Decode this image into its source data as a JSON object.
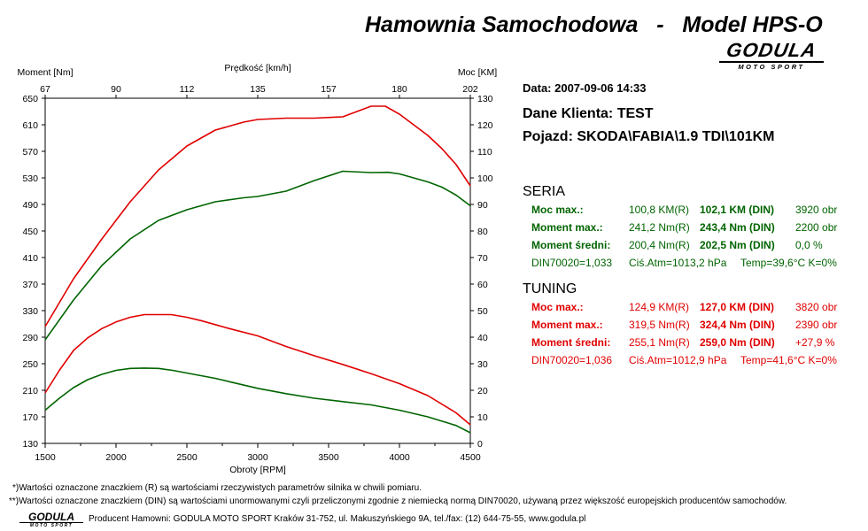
{
  "header": {
    "title": "Hamownia Samochodowa   -   Model HPS-O",
    "logo_top": "GODULA",
    "logo_bottom": "MOTO SPORT"
  },
  "info": {
    "date": "Data: 2007-09-06  14:33",
    "client": "Dane Klienta: TEST",
    "vehicle": "Pojazd: SKODA\\FABIA\\1.9 TDI\\101KM"
  },
  "colors": {
    "seria": "#006400",
    "tuning": "#e00000"
  },
  "seria": {
    "title": "SERIA",
    "rows": [
      {
        "label": "Moc max.:",
        "r": "100,8 KM(R)",
        "din": "102,1 KM (DIN)",
        "extra": "3920 obr"
      },
      {
        "label": "Moment max.:",
        "r": "241,2 Nm(R)",
        "din": "243,4 Nm (DIN)",
        "extra": "2200 obr"
      },
      {
        "label": "Moment średni:",
        "r": "200,4 Nm(R)",
        "din": "202,5 Nm (DIN)",
        "extra": "0,0 %"
      }
    ],
    "din_line": {
      "a": "DIN70020=1,033",
      "b": "Ciś.Atm=1013,2 hPa",
      "c": "Temp=39,6°C  K=0%"
    }
  },
  "tuning": {
    "title": "TUNING",
    "rows": [
      {
        "label": "Moc max.:",
        "r": "124,9 KM(R)",
        "din": "127,0 KM (DIN)",
        "extra": "3820 obr"
      },
      {
        "label": "Moment max.:",
        "r": "319,5 Nm(R)",
        "din": "324,4 Nm (DIN)",
        "extra": "2390 obr"
      },
      {
        "label": "Moment średni:",
        "r": "255,1 Nm(R)",
        "din": "259,0 Nm (DIN)",
        "extra": "+27,9 %"
      }
    ],
    "din_line": {
      "a": "DIN70020=1,036",
      "b": "Ciś.Atm=1012,9 hPa",
      "c": "Temp=41,6°C  K=0%"
    }
  },
  "footnotes": {
    "r": "*)Wartości oznaczone znaczkiem (R) są wartościami rzeczywistych parametrów silnika w chwili pomiaru.",
    "din": "**)Wartości oznaczone znaczkiem (DIN) są wartościami unormowanymi czyli przeliczonymi zgodnie z niemiecką normą DIN70020, używaną przez większość europejskich producentów samochodów.",
    "producer": "Producent Hamowni: GODULA MOTO SPORT Kraków 31-752, ul. Makuszyńskiego 9A, tel./fax: (12) 644-75-55, www.godula.pl"
  },
  "chart_data": {
    "type": "line",
    "xlabel": "Obroty [RPM]",
    "x_top_label": "Prędkość [km/h]",
    "ylabel_left": "Moment [Nm]",
    "ylabel_right": "Moc [KM]",
    "xlim": [
      1500,
      4500
    ],
    "ylim_left": [
      130,
      650
    ],
    "ylim_right": [
      0,
      130
    ],
    "x_ticks": [
      1500,
      2000,
      2500,
      3000,
      3500,
      4000,
      4500
    ],
    "y_left_ticks": [
      130,
      170,
      210,
      250,
      290,
      330,
      370,
      410,
      450,
      490,
      530,
      570,
      610,
      650
    ],
    "y_right_ticks": [
      0,
      10,
      20,
      30,
      40,
      50,
      60,
      70,
      80,
      90,
      100,
      110,
      120,
      130
    ],
    "x_top_ticks": [
      "67",
      "90",
      "112",
      "135",
      "157",
      "180",
      "202"
    ],
    "grid": false,
    "series": [
      {
        "color": "#e00000",
        "axis": "left",
        "x": [
          1500,
          1600,
          1700,
          1800,
          1900,
          2000,
          2100,
          2200,
          2300,
          2390,
          2500,
          2600,
          2700,
          2800,
          3000,
          3200,
          3400,
          3600,
          3800,
          4000,
          4200,
          4400,
          4500
        ],
        "values": [
          206,
          240,
          270,
          289,
          303,
          313,
          320,
          324,
          324,
          324,
          320,
          315,
          309,
          303,
          292,
          276,
          262,
          249,
          235,
          220,
          202,
          176,
          158
        ]
      },
      {
        "color": "#e00000",
        "axis": "right",
        "x": [
          1500,
          1700,
          1900,
          2100,
          2300,
          2500,
          2700,
          2900,
          3000,
          3200,
          3400,
          3600,
          3800,
          3900,
          4000,
          4100,
          4200,
          4300,
          4400,
          4500
        ],
        "values": [
          44,
          62,
          77,
          91,
          103,
          112,
          118,
          121,
          122,
          122.5,
          122.5,
          123,
          127,
          127,
          124,
          120,
          116,
          111,
          105,
          97
        ]
      },
      {
        "color": "#006400",
        "axis": "left",
        "x": [
          1500,
          1600,
          1700,
          1800,
          1900,
          2000,
          2100,
          2200,
          2300,
          2400,
          2500,
          2600,
          2700,
          2800,
          3000,
          3200,
          3400,
          3600,
          3800,
          4000,
          4200,
          4400,
          4500
        ],
        "values": [
          180,
          198,
          214,
          226,
          234,
          240,
          243,
          243.4,
          243,
          240,
          236,
          232,
          228,
          223,
          213,
          205,
          198,
          193,
          188,
          180,
          170,
          157,
          146
        ]
      },
      {
        "color": "#006400",
        "axis": "right",
        "x": [
          1500,
          1700,
          1900,
          2100,
          2300,
          2500,
          2700,
          2900,
          3000,
          3200,
          3400,
          3600,
          3800,
          3920,
          4000,
          4100,
          4200,
          4300,
          4400,
          4500
        ],
        "values": [
          39,
          54,
          67,
          77,
          84,
          88,
          91,
          92.5,
          93,
          95,
          99,
          102.5,
          102,
          102.1,
          101.5,
          100,
          98.5,
          96.5,
          93.5,
          89.5
        ]
      }
    ]
  }
}
